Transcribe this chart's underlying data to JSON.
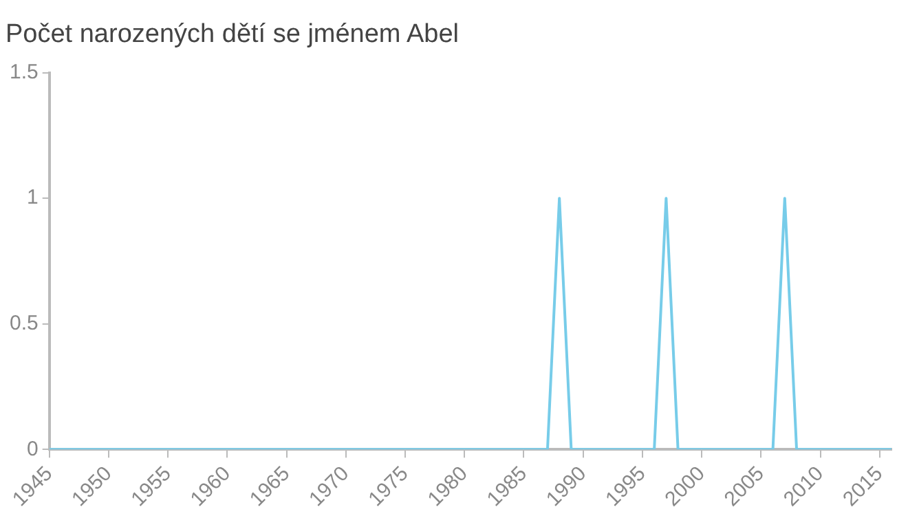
{
  "chart_data": {
    "type": "line",
    "title": "Počet narozených dětí se jménem Abel",
    "x": [
      1945,
      1946,
      1947,
      1948,
      1949,
      1950,
      1951,
      1952,
      1953,
      1954,
      1955,
      1956,
      1957,
      1958,
      1959,
      1960,
      1961,
      1962,
      1963,
      1964,
      1965,
      1966,
      1967,
      1968,
      1969,
      1970,
      1971,
      1972,
      1973,
      1974,
      1975,
      1976,
      1977,
      1978,
      1979,
      1980,
      1981,
      1982,
      1983,
      1984,
      1985,
      1986,
      1987,
      1988,
      1989,
      1990,
      1991,
      1992,
      1993,
      1994,
      1995,
      1996,
      1997,
      1998,
      1999,
      2000,
      2001,
      2002,
      2003,
      2004,
      2005,
      2006,
      2007,
      2008,
      2009,
      2010,
      2011,
      2012,
      2013,
      2014,
      2015,
      2016
    ],
    "series": [
      {
        "color": "#77cce9",
        "values": [
          0,
          0,
          0,
          0,
          0,
          0,
          0,
          0,
          0,
          0,
          0,
          0,
          0,
          0,
          0,
          0,
          0,
          0,
          0,
          0,
          0,
          0,
          0,
          0,
          0,
          0,
          0,
          0,
          0,
          0,
          0,
          0,
          0,
          0,
          0,
          0,
          0,
          0,
          0,
          0,
          0,
          0,
          0,
          1,
          0,
          0,
          0,
          0,
          0,
          0,
          0,
          0,
          1,
          0,
          0,
          0,
          0,
          0,
          0,
          0,
          0,
          0,
          1,
          0,
          0,
          0,
          0,
          0,
          0,
          0,
          0,
          0
        ]
      }
    ],
    "xlim": [
      1945,
      2016
    ],
    "xticks": [
      1945,
      1950,
      1955,
      1960,
      1965,
      1970,
      1975,
      1980,
      1985,
      1990,
      1995,
      2000,
      2005,
      2010,
      2015
    ],
    "ylim": [
      0,
      1.5
    ],
    "yticks": [
      0,
      0.5,
      1,
      1.5
    ],
    "grid": false,
    "legend": false,
    "marker": "none",
    "line_style": "solid"
  }
}
